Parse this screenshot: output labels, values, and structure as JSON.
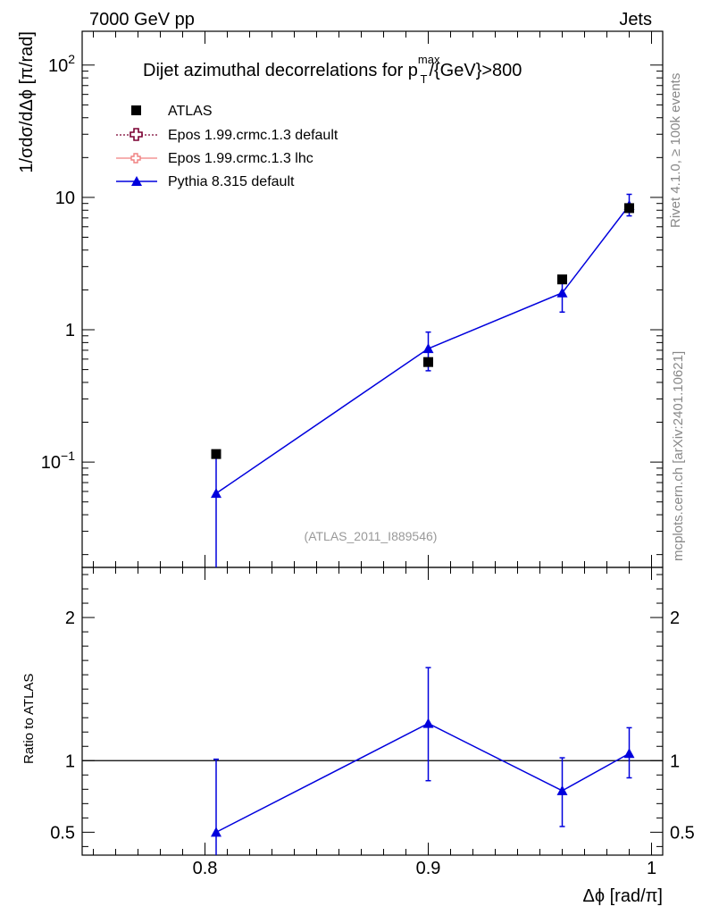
{
  "header": {
    "left": "7000 GeV pp",
    "right": "Jets"
  },
  "side_labels": {
    "rivet": "Rivet 4.1.0, ≥ 100k events",
    "mcplots": "mcplots.cern.ch [arXiv:2401.10621]"
  },
  "colors": {
    "atlas": "#000000",
    "epos_default": "#7b0032",
    "epos_lhc": "#f08080",
    "pythia": "#0000dd"
  },
  "chart_data": {
    "type": "scatter",
    "title": "Dijet azimuthal decorrelations for p_T^max/{GeV}>800",
    "title_main": "Dijet azimuthal decorrelations for p",
    "title_sup": "max",
    "title_sub": "T",
    "title_tail": "/{GeV}>800",
    "analysis_id": "(ATLAS_2011_I889546)",
    "xlabel": "Δϕ [rad/π]",
    "ylabel": "1/σdσ/dΔϕ [π/rad]",
    "ratio_ylabel": "Ratio to ATLAS",
    "xlim": [
      0.745,
      1.005
    ],
    "ylim": [
      0.016,
      180
    ],
    "yscale": "log",
    "ratio_ylim": [
      0.34,
      2.35
    ],
    "x_ticks": [
      "0.8",
      "0.9",
      "1"
    ],
    "x_tick_values": [
      0.8,
      0.9,
      1.0
    ],
    "y_ticks": [
      {
        "value": 0.1,
        "base": "10",
        "exp": "−1"
      },
      {
        "value": 1,
        "base": "1",
        "exp": ""
      },
      {
        "value": 10,
        "base": "10",
        "exp": ""
      },
      {
        "value": 100,
        "base": "10",
        "exp": "2"
      }
    ],
    "ratio_ticks": [
      "0.5",
      "1",
      "2"
    ],
    "ratio_tick_values": [
      0.5,
      1,
      2
    ],
    "legend": [
      {
        "key": "atlas",
        "label": "ATLAS"
      },
      {
        "key": "epos_default",
        "label": "Epos 1.99.crmc.1.3 default"
      },
      {
        "key": "epos_lhc",
        "label": "Epos 1.99.crmc.1.3 lhc"
      },
      {
        "key": "pythia",
        "label": "Pythia 8.315 default"
      }
    ],
    "series": [
      {
        "name": "ATLAS",
        "x": [
          0.805,
          0.9,
          0.96,
          0.99
        ],
        "y": [
          0.115,
          0.57,
          2.4,
          8.3
        ]
      },
      {
        "name": "Pythia 8.315 default",
        "x": [
          0.805,
          0.9,
          0.96,
          0.99
        ],
        "y": [
          0.058,
          0.72,
          1.9,
          8.7
        ],
        "yerr_low": [
          0.0585,
          0.23,
          0.54,
          1.45
        ],
        "yerr_high": [
          0.058,
          0.24,
          0.56,
          1.85
        ]
      }
    ],
    "ratio": {
      "name": "Pythia 8.315 default / ATLAS",
      "x": [
        0.805,
        0.9,
        0.96,
        0.99
      ],
      "y": [
        0.5,
        1.26,
        0.79,
        1.05
      ],
      "yerr_low": [
        0.6,
        0.4,
        0.25,
        0.17
      ],
      "yerr_high": [
        0.51,
        0.39,
        0.23,
        0.18
      ]
    }
  }
}
